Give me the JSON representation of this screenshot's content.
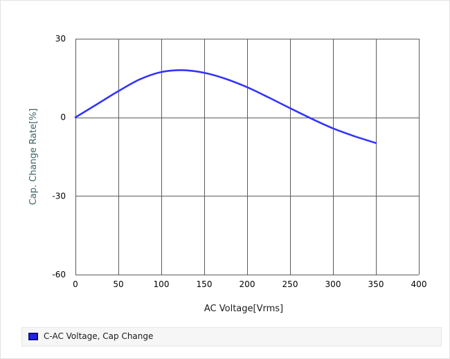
{
  "chart_data": {
    "type": "line",
    "title": "",
    "xlabel": "AC Voltage[Vrms]",
    "ylabel": "Cap. Change Rate[%]",
    "xlim": [
      0,
      400
    ],
    "ylim": [
      -60,
      30
    ],
    "x_ticks": [
      "0",
      "50",
      "100",
      "150",
      "200",
      "250",
      "300",
      "350",
      "400"
    ],
    "y_ticks": [
      "30",
      "0",
      "-30",
      "-60"
    ],
    "grid": true,
    "legend_position": "bottom",
    "series": [
      {
        "name": "C-AC Voltage, Cap Change",
        "color": "#3333ff",
        "x": [
          0,
          25,
          50,
          75,
          100,
          125,
          150,
          175,
          200,
          225,
          250,
          275,
          300,
          325,
          350
        ],
        "y": [
          0,
          5,
          10,
          14.5,
          17.3,
          18.0,
          17.0,
          14.7,
          11.5,
          7.6,
          3.5,
          -0.5,
          -4.2,
          -7.2,
          -9.8
        ]
      }
    ]
  },
  "colors": {
    "grid": "#5a5a5a",
    "axis_title": "#3c6464",
    "line": "#3333ff"
  }
}
